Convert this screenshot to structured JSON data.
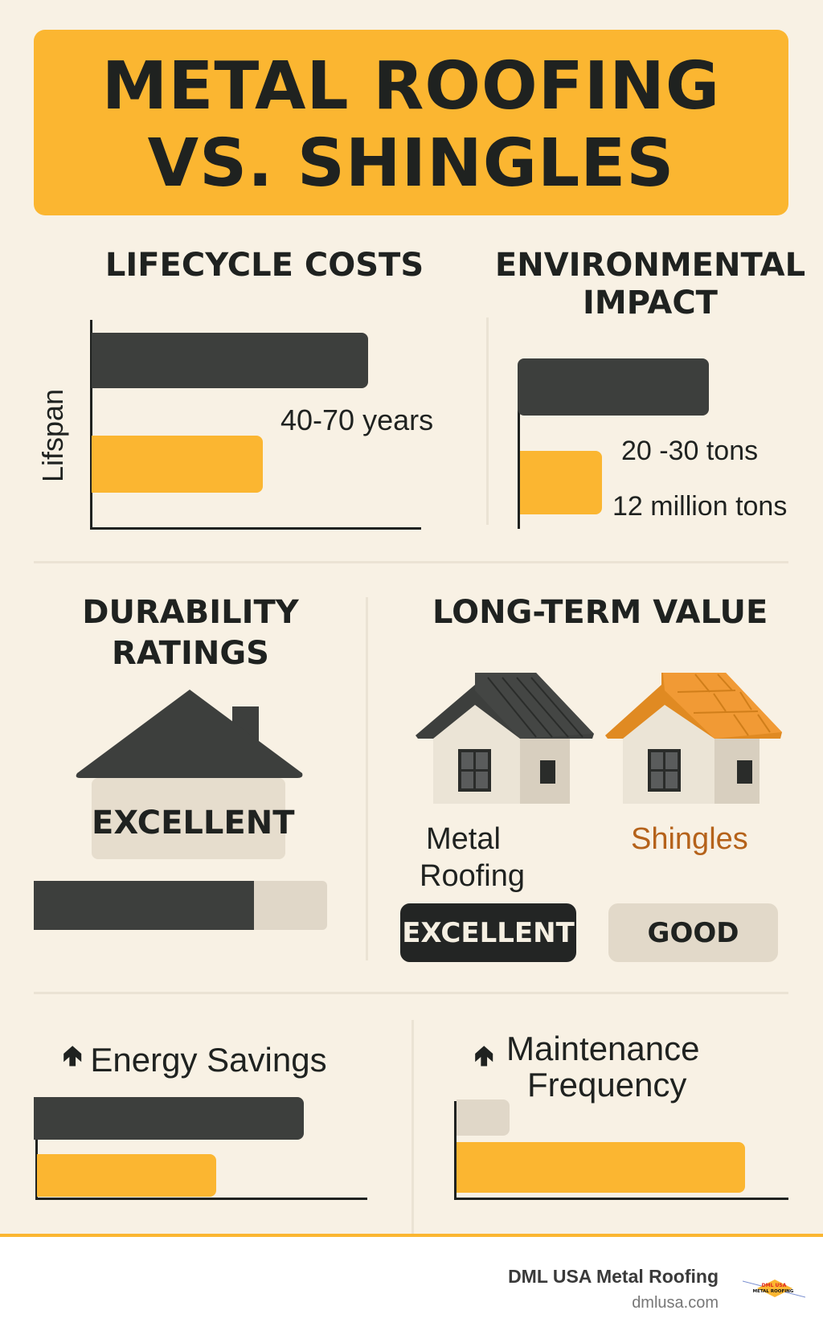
{
  "title": {
    "line1": "METAL ROOFING",
    "line2": "VS. SHINGLES"
  },
  "lifecycle": {
    "heading": "LIFECYCLE COSTS",
    "axis_label": "Lifspan",
    "value_label": "40-70 years",
    "bars": [
      {
        "color": "#3d3f3d",
        "value": 0.84
      },
      {
        "color": "#fbb631",
        "value": 0.52
      }
    ]
  },
  "environmental": {
    "heading_line1": "ENVIRONMENTAL",
    "heading_line2": "IMPACT",
    "label_1": "20 -30 tons",
    "label_2": "12 million tons",
    "bars": [
      {
        "color": "#3d3f3d",
        "value": 1.0
      },
      {
        "color": "#fbb631",
        "value": 0.43
      }
    ]
  },
  "durability": {
    "heading_line1": "DURABILITY",
    "heading_line2": "RATINGS",
    "rating": "EXCELLENT",
    "rating_fill": 0.75,
    "icon": "house-icon"
  },
  "long_term": {
    "heading": "LONG-TERM VALUE",
    "metal": {
      "label_line1": "Metal",
      "label_line2": "Roofing",
      "rating": "EXCELLENT",
      "icon": "metal-roof-house-icon"
    },
    "shingles": {
      "label": "Shingles",
      "rating": "GOOD",
      "icon": "shingle-roof-house-icon",
      "color": "#b5621a"
    }
  },
  "energy": {
    "heading": "Energy Savings",
    "icon": "arrow-up-icon",
    "bars": [
      {
        "color": "#3d3f3d",
        "value": 0.8
      },
      {
        "color": "#fbb631",
        "value": 0.53
      }
    ]
  },
  "maintenance": {
    "heading_line1": "Maintenance",
    "heading_line2": "Frequency",
    "icon": "arrow-up-icon",
    "bars": [
      {
        "color": "#e0d7c8",
        "value": 0.16
      },
      {
        "color": "#fbb631",
        "value": 0.87
      }
    ]
  },
  "footer": {
    "brand": "DML USA Metal Roofing",
    "url": "dmlusa.com",
    "logo_text_1": "DML USA",
    "logo_text_2": "METAL ROOFING"
  },
  "colors": {
    "accent": "#fbb631",
    "dark": "#3d3f3d",
    "background": "#f8f1e4"
  }
}
